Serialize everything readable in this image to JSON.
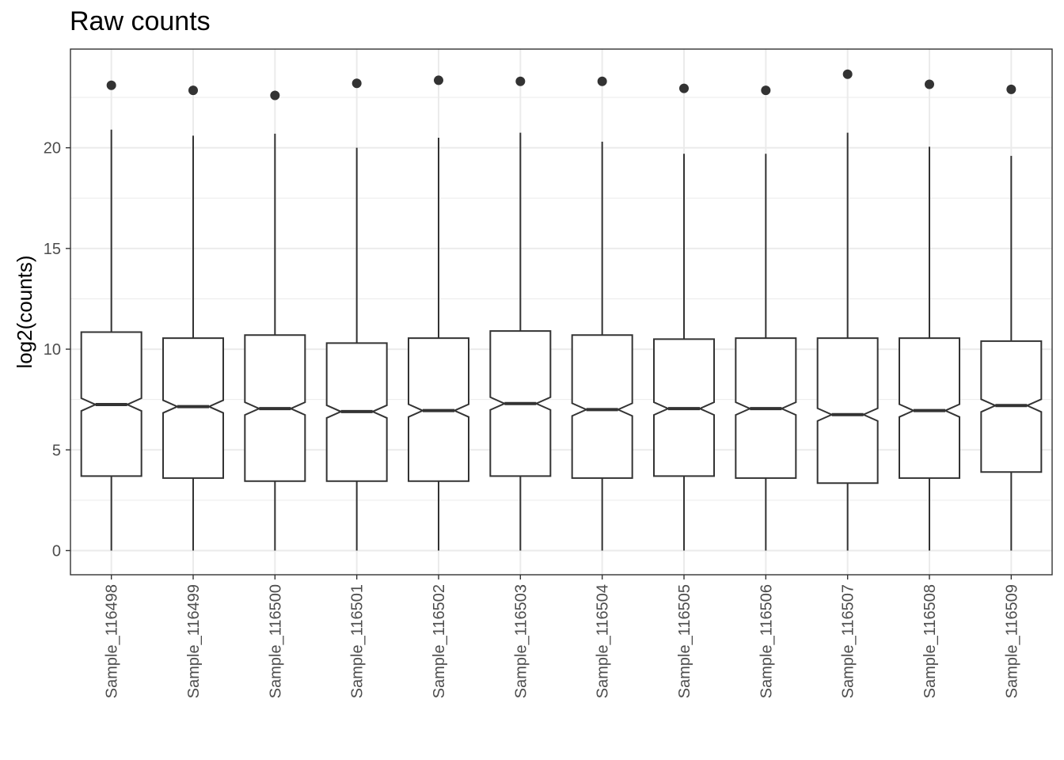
{
  "chart_data": {
    "type": "boxplot",
    "title": "Raw counts",
    "xlabel": "",
    "ylabel": "log2(counts)",
    "ylim": [
      -1.2,
      24.9
    ],
    "yticks": [
      0,
      5,
      10,
      15,
      20
    ],
    "grid": true,
    "notched": true,
    "categories": [
      "Sample_116498",
      "Sample_116499",
      "Sample_116500",
      "Sample_116501",
      "Sample_116502",
      "Sample_116503",
      "Sample_116504",
      "Sample_116505",
      "Sample_116506",
      "Sample_116507",
      "Sample_116508",
      "Sample_116509"
    ],
    "boxes": [
      {
        "lower_whisker": 0,
        "q1": 3.7,
        "median": 7.25,
        "q3": 10.85,
        "upper_whisker": 20.9,
        "outliers": [
          23.1
        ]
      },
      {
        "lower_whisker": 0,
        "q1": 3.6,
        "median": 7.15,
        "q3": 10.55,
        "upper_whisker": 20.6,
        "outliers": [
          22.85
        ]
      },
      {
        "lower_whisker": 0,
        "q1": 3.45,
        "median": 7.05,
        "q3": 10.7,
        "upper_whisker": 20.7,
        "outliers": [
          22.6
        ]
      },
      {
        "lower_whisker": 0,
        "q1": 3.45,
        "median": 6.9,
        "q3": 10.3,
        "upper_whisker": 20.0,
        "outliers": [
          23.2
        ]
      },
      {
        "lower_whisker": 0,
        "q1": 3.45,
        "median": 6.95,
        "q3": 10.55,
        "upper_whisker": 20.5,
        "outliers": [
          23.35
        ]
      },
      {
        "lower_whisker": 0,
        "q1": 3.7,
        "median": 7.3,
        "q3": 10.9,
        "upper_whisker": 20.75,
        "outliers": [
          23.3
        ]
      },
      {
        "lower_whisker": 0,
        "q1": 3.6,
        "median": 7.0,
        "q3": 10.7,
        "upper_whisker": 20.3,
        "outliers": [
          23.3
        ]
      },
      {
        "lower_whisker": 0,
        "q1": 3.7,
        "median": 7.05,
        "q3": 10.5,
        "upper_whisker": 19.7,
        "outliers": [
          22.95
        ]
      },
      {
        "lower_whisker": 0,
        "q1": 3.6,
        "median": 7.05,
        "q3": 10.55,
        "upper_whisker": 19.7,
        "outliers": [
          22.85
        ]
      },
      {
        "lower_whisker": 0,
        "q1": 3.35,
        "median": 6.75,
        "q3": 10.55,
        "upper_whisker": 20.75,
        "outliers": [
          23.65
        ]
      },
      {
        "lower_whisker": 0,
        "q1": 3.6,
        "median": 6.95,
        "q3": 10.55,
        "upper_whisker": 20.05,
        "outliers": [
          23.15
        ]
      },
      {
        "lower_whisker": 0,
        "q1": 3.9,
        "median": 7.2,
        "q3": 10.4,
        "upper_whisker": 19.6,
        "outliers": [
          22.9
        ]
      }
    ],
    "colors": {
      "box_fill": "#ffffff",
      "stroke": "#333333",
      "grid": "#ebebeb",
      "panel_border": "#333333"
    }
  }
}
